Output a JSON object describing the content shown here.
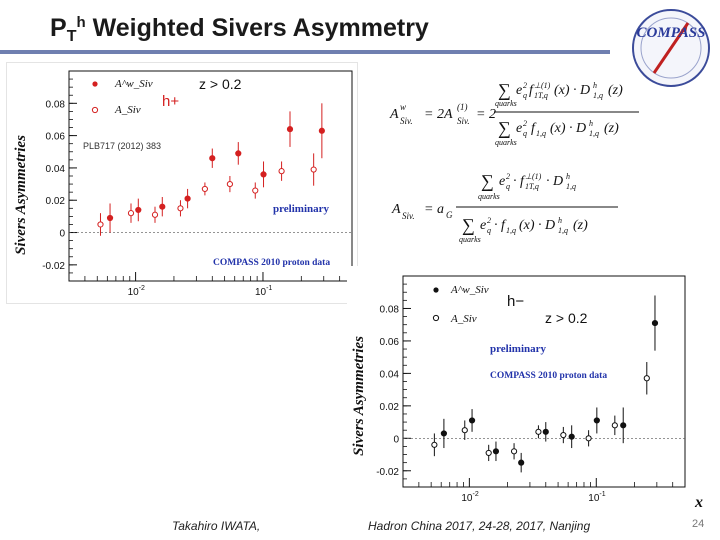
{
  "slide": {
    "title_main": "P",
    "title_sub": "T",
    "title_sup": "h",
    "title_rest": " Weighted Sivers Asymmetry",
    "logo_text": "COMPASS",
    "footer_left": "Takahiro IWATA,",
    "footer_center": "Hadron China 2017, 24-28, 2017, Nanjing",
    "page_number": "24",
    "x_axis_label": "x"
  },
  "formulas": {
    "f1": "A^w_Siv = 2A^(1)_Siv = 2 · Σ e_q² f_1T,q^⊥(1)(x)·D^h_1,q(z) / Σ e_q² f_1,q(x)·D^h_1,q(z)",
    "f2": "A_Siv = a_G · Σ e_q²·f_1T^⊥(1)·D^h_1,q / Σ e_q²·f_1,q(x)·D^h_1,q(z)"
  },
  "chart_data": [
    {
      "type": "scatter",
      "ylabel": "Sivers Asymmetries",
      "legend": [
        {
          "label": "A^w_Siv",
          "marker": "filled-circle"
        },
        {
          "label": "A_Siv",
          "marker": "open-circle"
        }
      ],
      "hadron_label": "h+",
      "cut_label": "z > 0.2",
      "reference": "PLB717 (2012) 383",
      "preliminary_label": "preliminary",
      "data_label": "COMPASS 2010 proton data",
      "x_scale": "log",
      "xlim": [
        0.003,
        0.5
      ],
      "ylim": [
        -0.03,
        0.1
      ],
      "y_ticks": [
        "-0.02",
        "0",
        "0.02",
        "0.04",
        "0.06",
        "0.08"
      ],
      "x_tick_labels": [
        "10^-2",
        "10^-1"
      ],
      "colors": {
        "series": "#d42020",
        "preliminary": "#2233aa"
      },
      "series": [
        {
          "name": "A^w_Siv",
          "marker": "filled",
          "x": [
            0.0063,
            0.0105,
            0.0162,
            0.0256,
            0.04,
            0.064,
            0.101,
            0.163,
            0.29
          ],
          "y": [
            0.009,
            0.014,
            0.016,
            0.021,
            0.046,
            0.049,
            0.036,
            0.064,
            0.063
          ],
          "err": [
            0.009,
            0.007,
            0.006,
            0.006,
            0.006,
            0.007,
            0.008,
            0.011,
            0.017
          ]
        },
        {
          "name": "A_Siv",
          "marker": "open",
          "x": [
            0.0053,
            0.0092,
            0.0142,
            0.0225,
            0.035,
            0.055,
            0.087,
            0.14,
            0.25
          ],
          "y": [
            0.005,
            0.012,
            0.011,
            0.015,
            0.027,
            0.03,
            0.026,
            0.038,
            0.039
          ],
          "err": [
            0.007,
            0.006,
            0.005,
            0.005,
            0.004,
            0.005,
            0.005,
            0.006,
            0.01
          ]
        }
      ]
    },
    {
      "type": "scatter",
      "ylabel": "Sivers Asymmetries",
      "legend": [
        {
          "label": "A^w_Siv",
          "marker": "filled-circle"
        },
        {
          "label": "A_Siv",
          "marker": "open-circle"
        }
      ],
      "hadron_label": "h−",
      "cut_label": "z > 0.2",
      "preliminary_label": "preliminary",
      "data_label": "COMPASS 2010 proton data",
      "x_scale": "log",
      "xlim": [
        0.003,
        0.5
      ],
      "ylim": [
        -0.03,
        0.1
      ],
      "y_ticks": [
        "-0.02",
        "0",
        "0.02",
        "0.04",
        "0.06",
        "0.08"
      ],
      "x_tick_labels": [
        "10^-2",
        "10^-1"
      ],
      "colors": {
        "series": "#111111",
        "preliminary": "#2233aa"
      },
      "series": [
        {
          "name": "A^w_Siv",
          "marker": "filled",
          "x": [
            0.0063,
            0.0105,
            0.0162,
            0.0256,
            0.04,
            0.064,
            0.101,
            0.163,
            0.29
          ],
          "y": [
            0.003,
            0.011,
            -0.008,
            -0.015,
            0.004,
            0.001,
            0.011,
            0.008,
            0.071
          ],
          "err": [
            0.009,
            0.007,
            0.006,
            0.006,
            0.006,
            0.007,
            0.008,
            0.011,
            0.017
          ]
        },
        {
          "name": "A_Siv",
          "marker": "open",
          "x": [
            0.0053,
            0.0092,
            0.0142,
            0.0225,
            0.035,
            0.055,
            0.087,
            0.14,
            0.25
          ],
          "y": [
            -0.004,
            0.005,
            -0.009,
            -0.008,
            0.004,
            0.002,
            0.0,
            0.008,
            0.037
          ],
          "err": [
            0.007,
            0.006,
            0.005,
            0.005,
            0.004,
            0.005,
            0.005,
            0.006,
            0.01
          ]
        }
      ]
    }
  ]
}
